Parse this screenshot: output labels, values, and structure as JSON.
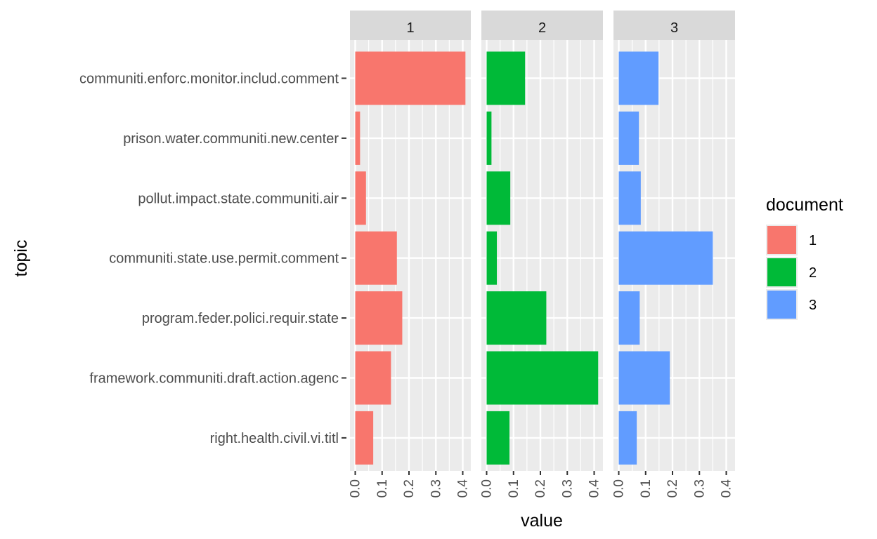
{
  "chart_data": {
    "type": "bar",
    "orientation": "horizontal",
    "facet_by": "document",
    "xlabel": "value",
    "ylabel": "topic",
    "xlim": [
      0,
      0.43
    ],
    "xticks": [
      "0.0",
      "0.1",
      "0.2",
      "0.3",
      "0.4"
    ],
    "categories": [
      "communiti.enforc.monitor.includ.comment",
      "prison.water.communiti.new.center",
      "pollut.impact.state.communiti.air",
      "communiti.state.use.permit.comment",
      "program.feder.polici.requir.state",
      "framework.communiti.draft.action.agenc",
      "right.health.civil.vi.titl"
    ],
    "facets": [
      {
        "label": "1",
        "color": "#F8766D",
        "values": [
          0.41,
          0.018,
          0.04,
          0.155,
          0.175,
          0.133,
          0.067
        ]
      },
      {
        "label": "2",
        "color": "#00BA38",
        "values": [
          0.143,
          0.018,
          0.088,
          0.038,
          0.222,
          0.415,
          0.085
        ]
      },
      {
        "label": "3",
        "color": "#619CFF",
        "values": [
          0.148,
          0.075,
          0.082,
          0.35,
          0.078,
          0.19,
          0.067
        ]
      }
    ],
    "legend": {
      "title": "document",
      "position": "right",
      "items": [
        {
          "label": "1",
          "color": "#F8766D"
        },
        {
          "label": "2",
          "color": "#00BA38"
        },
        {
          "label": "3",
          "color": "#619CFF"
        }
      ]
    },
    "grid": true,
    "panel_background": "#EBEBEB",
    "strip_background": "#D9D9D9"
  }
}
